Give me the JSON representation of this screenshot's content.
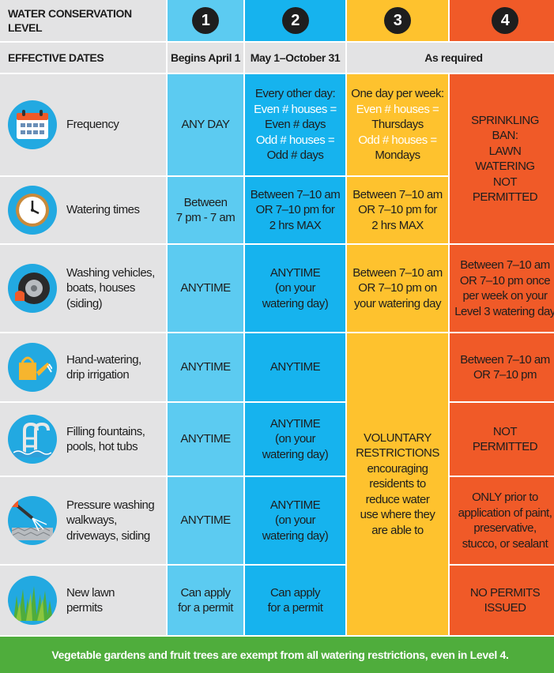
{
  "header": {
    "title": "WATER CONSERVATION LEVEL",
    "levels": [
      "1",
      "2",
      "3",
      "4"
    ]
  },
  "dates": {
    "label": "EFFECTIVE DATES",
    "level1": "Begins April 1",
    "level2": "May 1–October 31",
    "level34": "As required"
  },
  "frequency": {
    "label": "Frequency",
    "level1": "ANY DAY",
    "level2": {
      "l1": "Every other day:",
      "l2": "Even # houses =",
      "l3": "Even # days",
      "l4": "Odd # houses =",
      "l5": "Odd # days"
    },
    "level3": {
      "l1": "One day per week:",
      "l2": "Even # houses =",
      "l3": "Thursdays",
      "l4": "Odd # houses =",
      "l5": "Mondays"
    }
  },
  "level4_ban": {
    "l1": "SPRINKLING",
    "l2": "BAN:",
    "l3": "LAWN",
    "l4": "WATERING",
    "l5": "NOT",
    "l6": "PERMITTED"
  },
  "watering_times": {
    "label": "Watering times",
    "level1": {
      "l1": "Between",
      "l2": "7 pm - 7 am"
    },
    "level2": {
      "l1": "Between 7–10 am",
      "l2": "OR 7–10 pm for",
      "l3": "2 hrs MAX"
    },
    "level3": {
      "l1": "Between 7–10 am",
      "l2": "OR 7–10 pm for",
      "l3": "2 hrs MAX"
    }
  },
  "washing": {
    "label": {
      "l1": "Washing vehicles,",
      "l2": "boats, houses",
      "l3": "(siding)"
    },
    "level1": "ANYTIME",
    "level2": {
      "l1": "ANYTIME",
      "l2": "(on your",
      "l3": "watering day)"
    },
    "level3": {
      "l1": "Between 7–10 am",
      "l2": "OR 7–10 pm on",
      "l3": "your watering day"
    },
    "level4": {
      "l1": "Between 7–10 am",
      "l2": "OR 7–10 pm once",
      "l3": "per week on your",
      "l4": "Level 3 watering day"
    }
  },
  "hand_watering": {
    "label": {
      "l1": "Hand-watering,",
      "l2": "drip irrigation"
    },
    "level1": "ANYTIME",
    "level2": "ANYTIME",
    "level4": {
      "l1": "Between 7–10 am",
      "l2": "OR 7–10 pm"
    }
  },
  "voluntary": {
    "l1": "VOLUNTARY",
    "l2": "RESTRICTIONS",
    "l3": "encouraging",
    "l4": "residents to",
    "l5": "reduce water",
    "l6": "use where they",
    "l7": "are able to"
  },
  "fountains": {
    "label": {
      "l1": "Filling fountains,",
      "l2": "pools, hot tubs"
    },
    "level1": "ANYTIME",
    "level2": {
      "l1": "ANYTIME",
      "l2": "(on your",
      "l3": "watering day)"
    },
    "level4": {
      "l1": "NOT",
      "l2": "PERMITTED"
    }
  },
  "pressure": {
    "label": {
      "l1": "Pressure washing",
      "l2": "walkways,",
      "l3": "driveways, siding"
    },
    "level1": "ANYTIME",
    "level2": {
      "l1": "ANYTIME",
      "l2": "(on your",
      "l3": "watering day)"
    },
    "level4": {
      "l1": "ONLY prior to",
      "l2": "application of paint,",
      "l3": "preservative,",
      "l4": "stucco, or sealant"
    }
  },
  "lawn": {
    "label": {
      "l1": "New lawn",
      "l2": "permits"
    },
    "level1": {
      "l1": "Can apply",
      "l2": "for a permit"
    },
    "level2": {
      "l1": "Can apply",
      "l2": "for a permit"
    },
    "level4": {
      "l1": "NO PERMITS",
      "l2": "ISSUED"
    }
  },
  "footer": "Vegetable gardens and fruit trees are exempt from all watering restrictions, even in Level 4.",
  "colors": {
    "level1": "#5ccbf1",
    "level2": "#16b3ee",
    "level3": "#fec22e",
    "level4": "#f05a28",
    "label_bg": "#e3e3e4",
    "footer": "#4fad3c"
  },
  "icons": [
    "calendar-icon",
    "clock-icon",
    "tire-icon",
    "watering-can-icon",
    "pool-ladder-icon",
    "pressure-washer-icon",
    "grass-icon"
  ]
}
